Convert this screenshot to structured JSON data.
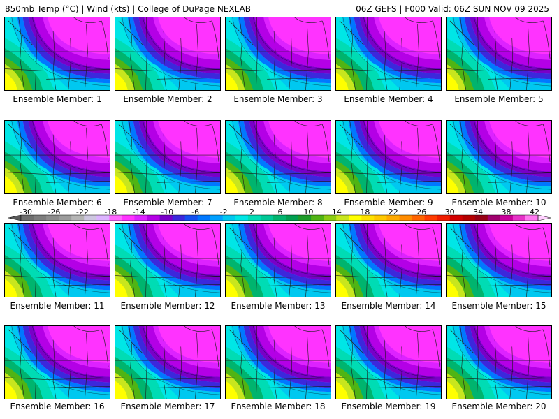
{
  "header": {
    "left": "850mb Temp (°C) | Wind (kts) | College of DuPage NEXLAB",
    "right": "06Z GEFS | F000 Valid: 06Z SUN NOV 09 2025"
  },
  "members": [
    "Ensemble Member: 1",
    "Ensemble Member: 2",
    "Ensemble Member: 3",
    "Ensemble Member: 4",
    "Ensemble Member: 5",
    "Ensemble Member: 6",
    "Ensemble Member: 7",
    "Ensemble Member: 8",
    "Ensemble Member: 9",
    "Ensemble Member: 10",
    "Ensemble Member: 11",
    "Ensemble Member: 12",
    "Ensemble Member: 13",
    "Ensemble Member: 14",
    "Ensemble Member: 15",
    "Ensemble Member: 16",
    "Ensemble Member: 17",
    "Ensemble Member: 18",
    "Ensemble Member: 19",
    "Ensemble Member: 20"
  ],
  "colorbar": {
    "ticks": [
      "-30",
      "-26",
      "-22",
      "-18",
      "-14",
      "-10",
      "-6",
      "-2",
      "2",
      "6",
      "10",
      "14",
      "18",
      "22",
      "26",
      "30",
      "34",
      "38",
      "42"
    ],
    "colors": [
      "#6e6e6e",
      "#7d7d7d",
      "#8c8c8c",
      "#9b9b9b",
      "#b4b4b4",
      "#cdc6e0",
      "#dcb4ff",
      "#ff66ff",
      "#ff33ff",
      "#dd22ff",
      "#b400e6",
      "#7800c8",
      "#3c28dc",
      "#1450f0",
      "#0078ff",
      "#00a0ff",
      "#00c8f0",
      "#00e6e6",
      "#00dcb4",
      "#00c896",
      "#00b46e",
      "#00a050",
      "#1e9b28",
      "#50b414",
      "#8ccd14",
      "#c8e61e",
      "#ffff00",
      "#ffe100",
      "#ffc800",
      "#ffaa00",
      "#ff8c00",
      "#ff6400",
      "#ff3c00",
      "#f01e00",
      "#d20000",
      "#b40000",
      "#960014",
      "#a0006e",
      "#c8009b",
      "#e632c8",
      "#ff78f0"
    ]
  }
}
